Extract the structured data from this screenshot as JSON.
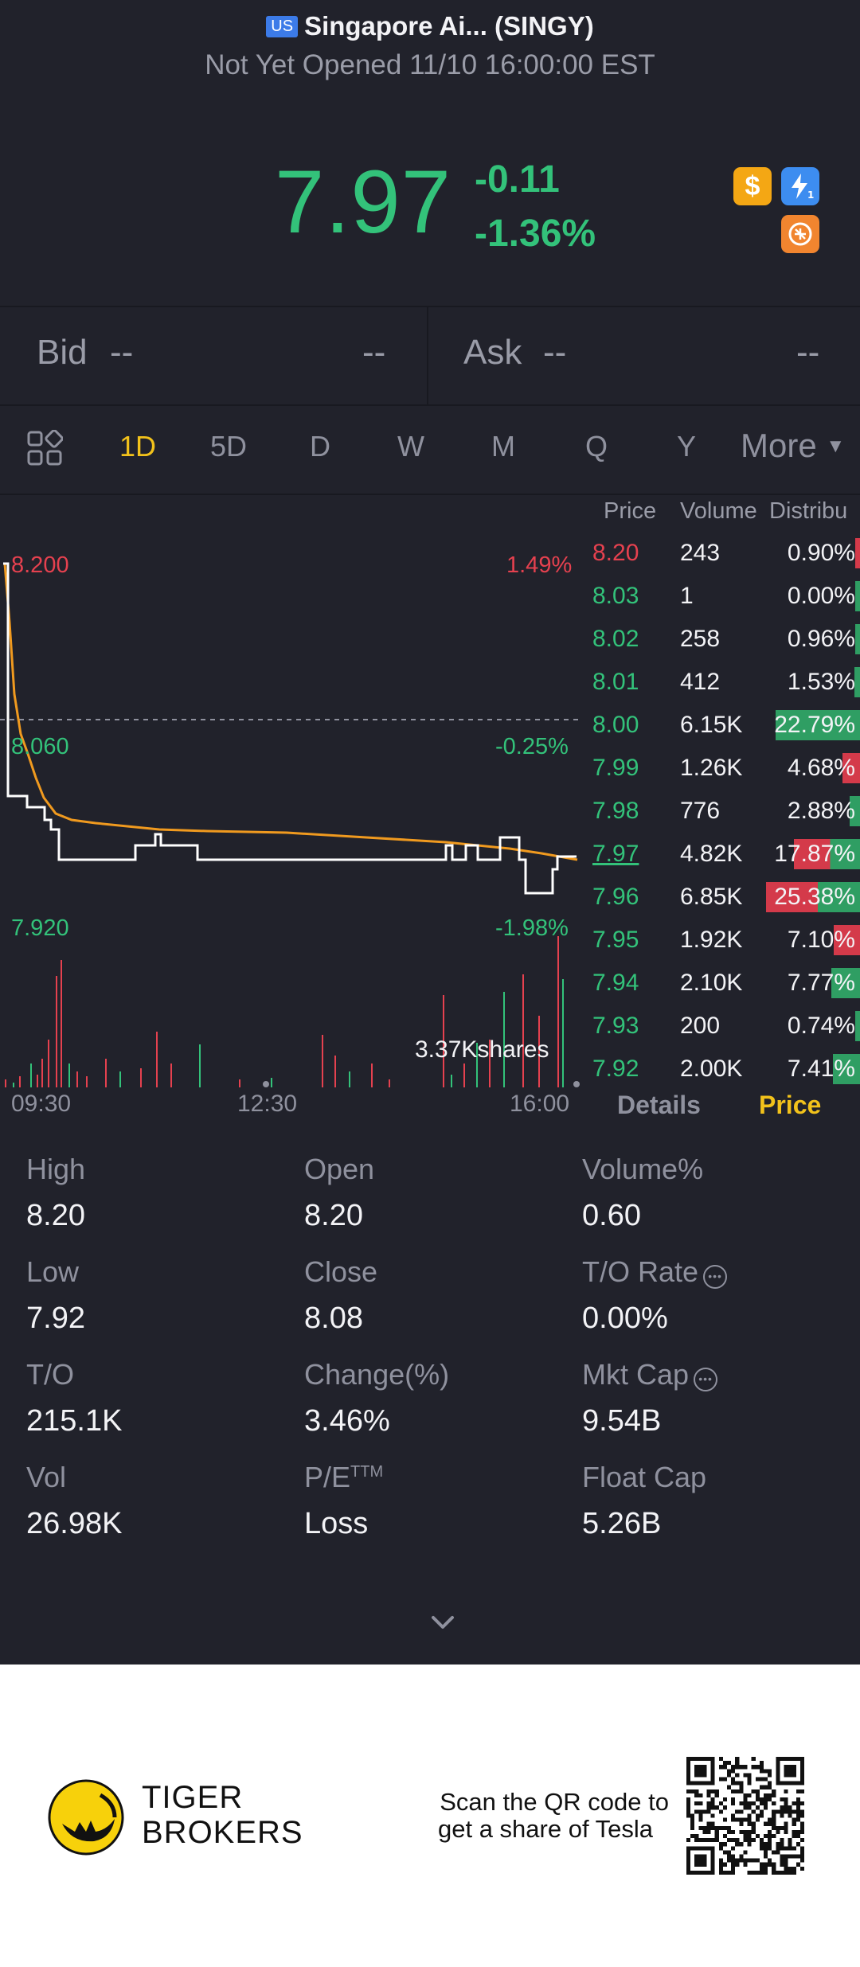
{
  "header": {
    "market_badge": "US",
    "title": "Singapore Ai... (SINGY)",
    "status": "Not Yet Opened 11/10 16:00:00 EST"
  },
  "quote": {
    "price": "7.97",
    "change": "-0.11",
    "change_pct": "-1.36%",
    "icons": [
      "dollar-icon",
      "flash-icon",
      "currency-icon"
    ]
  },
  "bid_ask": {
    "bid_label": "Bid",
    "bid_value": "--",
    "bid_size": "--",
    "ask_label": "Ask",
    "ask_value": "--",
    "ask_size": "--"
  },
  "tabs": [
    "1D",
    "5D",
    "D",
    "W",
    "M",
    "Q",
    "Y"
  ],
  "active_tab": "1D",
  "more_label": "More",
  "chart": {
    "price_high": "8.200",
    "price_mid": "8.060",
    "price_low": "7.920",
    "pct_high": "1.49%",
    "pct_mid": "-0.25%",
    "pct_low": "-1.98%",
    "volume_label": "3.37Kshares",
    "x_labels": [
      "09:30",
      "12:30",
      "16:00"
    ],
    "colors": {
      "price_line": "#ffffff",
      "avg_line": "#f09a1f",
      "up": "#e5414f",
      "down": "#33c27a"
    }
  },
  "chart_data": {
    "type": "line",
    "x": [
      "09:30",
      "09:45",
      "10:00",
      "10:15",
      "10:30",
      "11:00",
      "11:30",
      "12:00",
      "12:30",
      "13:00",
      "13:30",
      "14:00",
      "14:30",
      "15:00",
      "15:15",
      "15:30",
      "15:45",
      "16:00"
    ],
    "series": [
      {
        "name": "",
        "values": [
          8.2,
          8.04,
          8.02,
          8.02,
          8.0,
          8.0,
          8.01,
          8.0,
          8.0,
          8.0,
          8.0,
          8.0,
          8.0,
          8.0,
          7.99,
          8.0,
          7.95,
          7.97
        ]
      },
      {
        "name": "",
        "values": [
          8.2,
          8.07,
          8.03,
          8.02,
          8.02,
          8.01,
          8.01,
          8.01,
          8.01,
          8.01,
          8.0,
          8.0,
          8.0,
          8.0,
          8.0,
          7.99,
          7.98,
          7.98
        ]
      }
    ],
    "ylim": [
      7.92,
      8.2
    ],
    "reference": 8.08
  },
  "order_book": {
    "headers": [
      "Price",
      "Volume",
      "Distribu"
    ],
    "rows": [
      {
        "price": "8.20",
        "volume": "243",
        "dist": "0.90%",
        "pct": 0.9,
        "side": "red"
      },
      {
        "price": "8.03",
        "volume": "1",
        "dist": "0.00%",
        "pct": 0.0,
        "side": "green"
      },
      {
        "price": "8.02",
        "volume": "258",
        "dist": "0.96%",
        "pct": 0.96,
        "side": "green"
      },
      {
        "price": "8.01",
        "volume": "412",
        "dist": "1.53%",
        "pct": 1.53,
        "side": "green"
      },
      {
        "price": "8.00",
        "volume": "6.15K",
        "dist": "22.79%",
        "pct": 22.79,
        "side": "green"
      },
      {
        "price": "7.99",
        "volume": "1.26K",
        "dist": "4.68%",
        "pct": 4.68,
        "side": "red"
      },
      {
        "price": "7.98",
        "volume": "776",
        "dist": "2.88%",
        "pct": 2.88,
        "side": "green"
      },
      {
        "price": "7.97",
        "volume": "4.82K",
        "dist": "17.87%",
        "pct": 17.87,
        "side": "mixed"
      },
      {
        "price": "7.96",
        "volume": "6.85K",
        "dist": "25.38%",
        "pct": 25.38,
        "side": "mixed"
      },
      {
        "price": "7.95",
        "volume": "1.92K",
        "dist": "7.10%",
        "pct": 7.1,
        "side": "red"
      },
      {
        "price": "7.94",
        "volume": "2.10K",
        "dist": "7.77%",
        "pct": 7.77,
        "side": "green"
      },
      {
        "price": "7.93",
        "volume": "200",
        "dist": "0.74%",
        "pct": 0.74,
        "side": "green"
      },
      {
        "price": "7.92",
        "volume": "2.00K",
        "dist": "7.41%",
        "pct": 7.41,
        "side": "green"
      }
    ]
  },
  "subtabs": {
    "details": "Details",
    "price": "Price"
  },
  "stats": [
    {
      "label": "High",
      "value": "8.20"
    },
    {
      "label": "Open",
      "value": "8.20"
    },
    {
      "label": "Volume%",
      "value": "0.60"
    },
    {
      "label": "Low",
      "value": "7.92"
    },
    {
      "label": "Close",
      "value": "8.08"
    },
    {
      "label": "T/O Rate",
      "value": "0.00%"
    },
    {
      "label": "T/O",
      "value": "215.1K"
    },
    {
      "label": "Change(%)",
      "value": "3.46%"
    },
    {
      "label": "Mkt Cap",
      "value": "9.54B"
    },
    {
      "label": "Vol",
      "value": "26.98K"
    },
    {
      "label": "P/E",
      "sup": "TTM",
      "value": "Loss"
    },
    {
      "label": "Float Cap",
      "value": "5.26B"
    }
  ],
  "footer": {
    "brand_line1": "TIGER",
    "brand_line2": "BROKERS",
    "promo_line1": "Scan the QR code to",
    "promo_line2": "get a share of Tesla"
  }
}
